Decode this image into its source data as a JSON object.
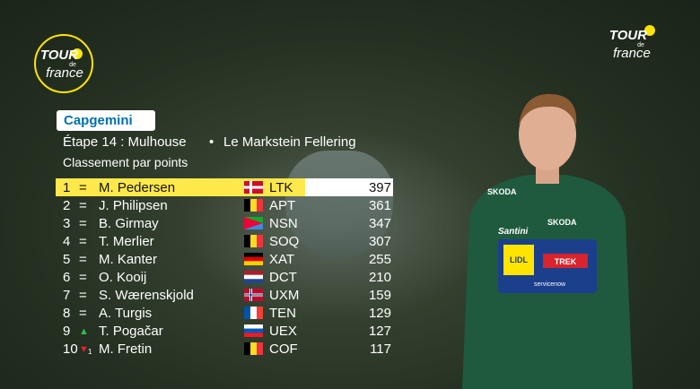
{
  "logo": {
    "top": "TOUR",
    "middle": "de",
    "bottom": "france"
  },
  "sponsor": "Capgemini",
  "header": {
    "title": "Étape 14 : Mulhouse",
    "separator": "•",
    "destination": "Le Markstein Fellering",
    "subtitle": "Classement par points"
  },
  "jersey": [
    "SKODA",
    "Santini",
    "LIDL",
    "TREK",
    "servicenow"
  ],
  "table": {
    "rows": [
      {
        "rank": "1",
        "change": "=",
        "name": "M. Pedersen",
        "team": "LTK",
        "points": "397"
      },
      {
        "rank": "2",
        "change": "=",
        "name": "J. Philipsen",
        "team": "APT",
        "points": "361"
      },
      {
        "rank": "3",
        "change": "=",
        "name": "B. Girmay",
        "team": "NSN",
        "points": "347"
      },
      {
        "rank": "4",
        "change": "=",
        "name": "T. Merlier",
        "team": "SOQ",
        "points": "307"
      },
      {
        "rank": "5",
        "change": "=",
        "name": "M. Kanter",
        "team": "XAT",
        "points": "255"
      },
      {
        "rank": "6",
        "change": "=",
        "name": "O. Kooij",
        "team": "DCT",
        "points": "210"
      },
      {
        "rank": "7",
        "change": "=",
        "name": "S. Wærenskjold",
        "team": "UXM",
        "points": "159"
      },
      {
        "rank": "8",
        "change": "=",
        "name": "A. Turgis",
        "team": "TEN",
        "points": "129"
      },
      {
        "rank": "9",
        "change": "▲",
        "name": "T. Pogačar",
        "team": "UEX",
        "points": "127"
      },
      {
        "rank": "10",
        "change": "▼",
        "change_count": "1",
        "name": "M. Fretin",
        "team": "COF",
        "points": "117"
      }
    ]
  }
}
